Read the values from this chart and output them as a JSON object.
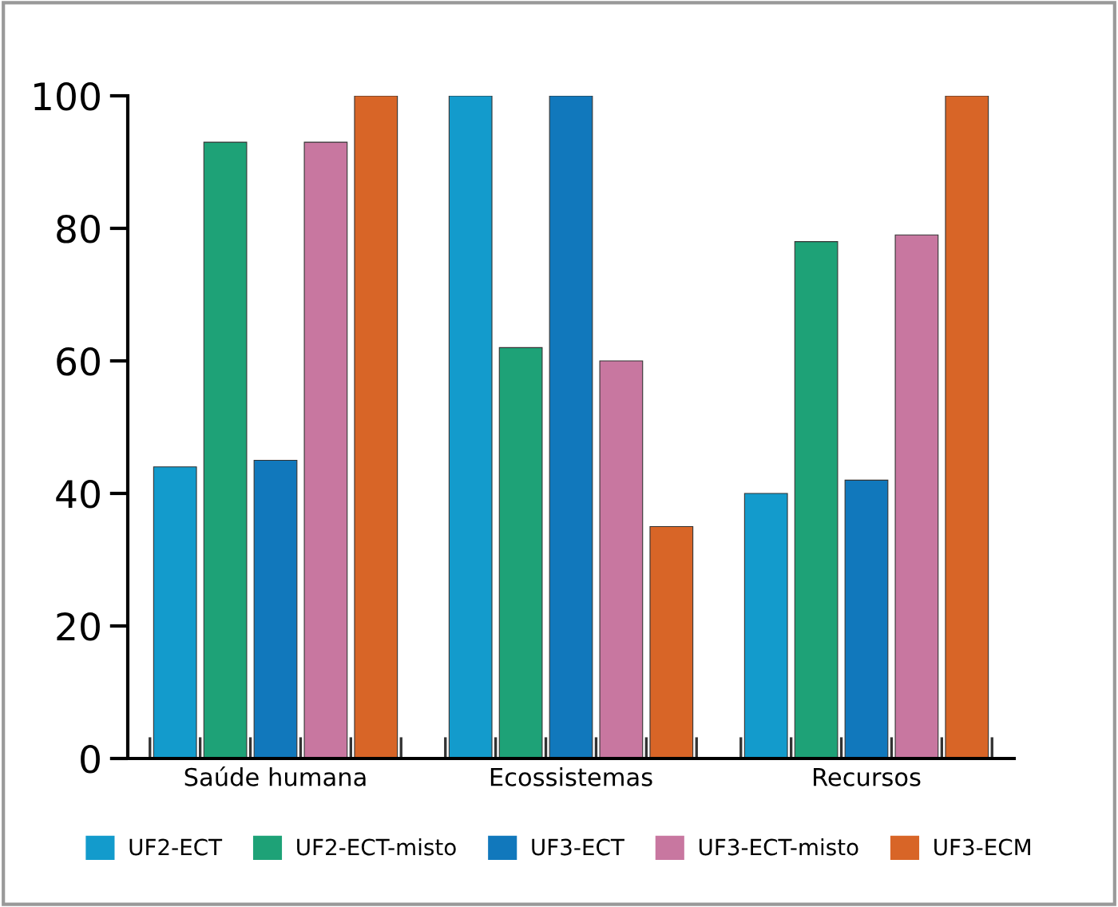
{
  "chart_data": {
    "type": "bar",
    "categories": [
      "Saúde humana",
      "Ecossistemas",
      "Recursos"
    ],
    "series": [
      {
        "name": "UF2-ECT",
        "color": "#139bcc",
        "values": [
          44,
          100,
          40
        ]
      },
      {
        "name": "UF2-ECT-misto",
        "color": "#1ea277",
        "values": [
          93,
          62,
          78
        ]
      },
      {
        "name": "UF3-ECT",
        "color": "#1178bc",
        "values": [
          45,
          100,
          42
        ]
      },
      {
        "name": "UF3-ECT-misto",
        "color": "#c877a0",
        "values": [
          93,
          60,
          79
        ]
      },
      {
        "name": "UF3-ECM",
        "color": "#d86527",
        "values": [
          100,
          35,
          100
        ]
      }
    ],
    "ylim": [
      0,
      100
    ],
    "yticks": [
      0,
      20,
      40,
      60,
      80,
      100
    ],
    "grid": false,
    "legend": "bottom"
  }
}
